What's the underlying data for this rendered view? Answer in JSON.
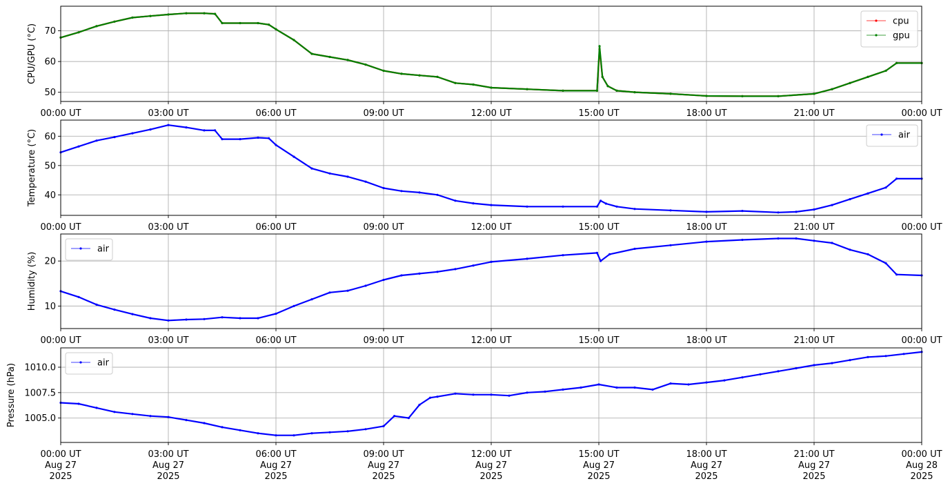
{
  "x_ticks": {
    "time": [
      "00:00 UT",
      "03:00 UT",
      "06:00 UT",
      "09:00 UT",
      "12:00 UT",
      "15:00 UT",
      "18:00 UT",
      "21:00 UT",
      "00:00 UT"
    ],
    "date_line1": [
      "Aug 27",
      "Aug 27",
      "Aug 27",
      "Aug 27",
      "Aug 27",
      "Aug 27",
      "Aug 27",
      "Aug 27",
      "Aug 28"
    ],
    "date_line2": [
      "2025",
      "2025",
      "2025",
      "2025",
      "2025",
      "2025",
      "2025",
      "2025",
      "2025"
    ]
  },
  "colors": {
    "cpu": "#ff0000",
    "gpu": "#008000",
    "air": "#0000ff",
    "grid": "#b0b0b0"
  },
  "chart_data": [
    {
      "type": "line",
      "ylabel": "CPU/GPU (°C)",
      "xlim": [
        0,
        24
      ],
      "ylim": [
        47,
        78
      ],
      "yticks": [
        50,
        60,
        70
      ],
      "ytick_labels": [
        "50",
        "60",
        "70"
      ],
      "grid": true,
      "legend": "top-right",
      "series": [
        {
          "name": "cpu",
          "color": "#ff0000",
          "points": [
            [
              0,
              67.8
            ],
            [
              0.5,
              69.5
            ],
            [
              1,
              71.5
            ],
            [
              1.5,
              73
            ],
            [
              2,
              74.3
            ],
            [
              2.5,
              74.8
            ],
            [
              3,
              75.3
            ],
            [
              3.5,
              75.7
            ],
            [
              4,
              75.7
            ],
            [
              4.3,
              75.5
            ],
            [
              4.5,
              72.5
            ],
            [
              5,
              72.5
            ],
            [
              5.5,
              72.5
            ],
            [
              5.8,
              72
            ],
            [
              6,
              70.5
            ],
            [
              6.5,
              67
            ],
            [
              7,
              62.5
            ],
            [
              7.5,
              61.5
            ],
            [
              8,
              60.5
            ],
            [
              8.5,
              59
            ],
            [
              9,
              57
            ],
            [
              9.5,
              56
            ],
            [
              10,
              55.5
            ],
            [
              10.5,
              55
            ],
            [
              11,
              53
            ],
            [
              11.5,
              52.5
            ],
            [
              12,
              51.5
            ],
            [
              13,
              51
            ],
            [
              14,
              50.5
            ],
            [
              14.95,
              50.5
            ],
            [
              15.02,
              64
            ],
            [
              15.1,
              55
            ],
            [
              15.25,
              52
            ],
            [
              15.5,
              50.5
            ],
            [
              16,
              50
            ],
            [
              17,
              49.5
            ],
            [
              18,
              48.8
            ],
            [
              19,
              48.7
            ],
            [
              20,
              48.7
            ],
            [
              21,
              49.5
            ],
            [
              21.5,
              51
            ],
            [
              22,
              53
            ],
            [
              22.5,
              55
            ],
            [
              23,
              57
            ],
            [
              23.3,
              59.5
            ],
            [
              24,
              59.5
            ]
          ]
        },
        {
          "name": "gpu",
          "color": "#008000",
          "points": [
            [
              0,
              67.8
            ],
            [
              0.5,
              69.5
            ],
            [
              1,
              71.5
            ],
            [
              1.5,
              73
            ],
            [
              2,
              74.3
            ],
            [
              2.5,
              74.8
            ],
            [
              3,
              75.3
            ],
            [
              3.5,
              75.7
            ],
            [
              4,
              75.7
            ],
            [
              4.3,
              75.5
            ],
            [
              4.5,
              72.5
            ],
            [
              5,
              72.5
            ],
            [
              5.5,
              72.5
            ],
            [
              5.8,
              72
            ],
            [
              6,
              70.5
            ],
            [
              6.5,
              67
            ],
            [
              7,
              62.5
            ],
            [
              7.5,
              61.5
            ],
            [
              8,
              60.5
            ],
            [
              8.5,
              59
            ],
            [
              9,
              57
            ],
            [
              9.5,
              56
            ],
            [
              10,
              55.5
            ],
            [
              10.5,
              55
            ],
            [
              11,
              53
            ],
            [
              11.5,
              52.5
            ],
            [
              12,
              51.5
            ],
            [
              13,
              51
            ],
            [
              14,
              50.5
            ],
            [
              14.95,
              50.5
            ],
            [
              15.02,
              65
            ],
            [
              15.1,
              55
            ],
            [
              15.25,
              52
            ],
            [
              15.5,
              50.5
            ],
            [
              16,
              50
            ],
            [
              17,
              49.5
            ],
            [
              18,
              48.8
            ],
            [
              19,
              48.7
            ],
            [
              20,
              48.7
            ],
            [
              21,
              49.5
            ],
            [
              21.5,
              51
            ],
            [
              22,
              53
            ],
            [
              22.5,
              55
            ],
            [
              23,
              57
            ],
            [
              23.3,
              59.5
            ],
            [
              24,
              59.5
            ]
          ]
        }
      ]
    },
    {
      "type": "line",
      "ylabel": "Temperature (°C)",
      "xlim": [
        0,
        24
      ],
      "ylim": [
        33,
        65.5
      ],
      "yticks": [
        40,
        50,
        60
      ],
      "ytick_labels": [
        "40",
        "50",
        "60"
      ],
      "grid": true,
      "legend": "top-right",
      "series": [
        {
          "name": "air",
          "color": "#0000ff",
          "points": [
            [
              0,
              54.5
            ],
            [
              0.5,
              56.5
            ],
            [
              1,
              58.5
            ],
            [
              1.5,
              59.7
            ],
            [
              2,
              61
            ],
            [
              2.5,
              62.3
            ],
            [
              3,
              63.8
            ],
            [
              3.5,
              63
            ],
            [
              4,
              62
            ],
            [
              4.3,
              62
            ],
            [
              4.5,
              59
            ],
            [
              5,
              59
            ],
            [
              5.5,
              59.5
            ],
            [
              5.8,
              59.3
            ],
            [
              6,
              57
            ],
            [
              6.5,
              53
            ],
            [
              7,
              49
            ],
            [
              7.5,
              47.3
            ],
            [
              8,
              46.2
            ],
            [
              8.5,
              44.5
            ],
            [
              9,
              42.3
            ],
            [
              9.5,
              41.3
            ],
            [
              10,
              40.8
            ],
            [
              10.5,
              40
            ],
            [
              11,
              38
            ],
            [
              11.5,
              37.1
            ],
            [
              12,
              36.5
            ],
            [
              13,
              36
            ],
            [
              14,
              36
            ],
            [
              14.95,
              36
            ],
            [
              15.05,
              38
            ],
            [
              15.2,
              37
            ],
            [
              15.5,
              36
            ],
            [
              16,
              35.2
            ],
            [
              17,
              34.7
            ],
            [
              18,
              34.2
            ],
            [
              19,
              34.5
            ],
            [
              20,
              34
            ],
            [
              20.5,
              34.2
            ],
            [
              21,
              35
            ],
            [
              21.5,
              36.5
            ],
            [
              22,
              38.5
            ],
            [
              22.5,
              40.5
            ],
            [
              23,
              42.5
            ],
            [
              23.3,
              45.5
            ],
            [
              24,
              45.5
            ]
          ]
        }
      ]
    },
    {
      "type": "line",
      "ylabel": "Humidity (%)",
      "xlim": [
        0,
        24
      ],
      "ylim": [
        5,
        26
      ],
      "yticks": [
        10,
        20
      ],
      "ytick_labels": [
        "10",
        "20"
      ],
      "grid": true,
      "legend": "top-left",
      "series": [
        {
          "name": "air",
          "color": "#0000ff",
          "points": [
            [
              0,
              13.3
            ],
            [
              0.5,
              12
            ],
            [
              1,
              10.3
            ],
            [
              1.5,
              9.2
            ],
            [
              2,
              8.2
            ],
            [
              2.5,
              7.3
            ],
            [
              3,
              6.8
            ],
            [
              3.5,
              7
            ],
            [
              4,
              7.1
            ],
            [
              4.5,
              7.5
            ],
            [
              5,
              7.3
            ],
            [
              5.5,
              7.3
            ],
            [
              6,
              8.3
            ],
            [
              6.5,
              10
            ],
            [
              7,
              11.5
            ],
            [
              7.5,
              13
            ],
            [
              8,
              13.4
            ],
            [
              8.5,
              14.5
            ],
            [
              9,
              15.8
            ],
            [
              9.5,
              16.8
            ],
            [
              10,
              17.2
            ],
            [
              10.5,
              17.6
            ],
            [
              11,
              18.2
            ],
            [
              11.5,
              19
            ],
            [
              12,
              19.8
            ],
            [
              13,
              20.5
            ],
            [
              14,
              21.3
            ],
            [
              14.95,
              21.8
            ],
            [
              15.05,
              20
            ],
            [
              15.3,
              21.5
            ],
            [
              16,
              22.7
            ],
            [
              17,
              23.5
            ],
            [
              18,
              24.3
            ],
            [
              19,
              24.7
            ],
            [
              20,
              25
            ],
            [
              20.5,
              25
            ],
            [
              21,
              24.5
            ],
            [
              21.5,
              24
            ],
            [
              22,
              22.5
            ],
            [
              22.5,
              21.5
            ],
            [
              23,
              19.5
            ],
            [
              23.3,
              17
            ],
            [
              24,
              16.8
            ]
          ]
        }
      ]
    },
    {
      "type": "line",
      "ylabel": "Pressure (hPa)",
      "xlim": [
        0,
        24
      ],
      "ylim": [
        1002.6,
        1011.9
      ],
      "yticks": [
        1005.0,
        1007.5,
        1010.0
      ],
      "ytick_labels": [
        "1005.0",
        "1007.5",
        "1010.0"
      ],
      "grid": true,
      "legend": "top-left",
      "series": [
        {
          "name": "air",
          "color": "#0000ff",
          "points": [
            [
              0,
              1006.5
            ],
            [
              0.5,
              1006.4
            ],
            [
              1,
              1006
            ],
            [
              1.5,
              1005.6
            ],
            [
              2,
              1005.4
            ],
            [
              2.5,
              1005.2
            ],
            [
              3,
              1005.1
            ],
            [
              3.5,
              1004.8
            ],
            [
              4,
              1004.5
            ],
            [
              4.5,
              1004.1
            ],
            [
              5,
              1003.8
            ],
            [
              5.5,
              1003.5
            ],
            [
              6,
              1003.3
            ],
            [
              6.5,
              1003.3
            ],
            [
              7,
              1003.5
            ],
            [
              7.5,
              1003.6
            ],
            [
              8,
              1003.7
            ],
            [
              8.5,
              1003.9
            ],
            [
              9,
              1004.2
            ],
            [
              9.3,
              1005.2
            ],
            [
              9.7,
              1005
            ],
            [
              10,
              1006.3
            ],
            [
              10.3,
              1007
            ],
            [
              10.5,
              1007.1
            ],
            [
              11,
              1007.4
            ],
            [
              11.5,
              1007.3
            ],
            [
              12,
              1007.3
            ],
            [
              12.5,
              1007.2
            ],
            [
              13,
              1007.5
            ],
            [
              13.5,
              1007.6
            ],
            [
              14,
              1007.8
            ],
            [
              14.5,
              1008
            ],
            [
              15,
              1008.3
            ],
            [
              15.5,
              1008
            ],
            [
              16,
              1008
            ],
            [
              16.5,
              1007.8
            ],
            [
              17,
              1008.4
            ],
            [
              17.5,
              1008.3
            ],
            [
              18,
              1008.5
            ],
            [
              18.5,
              1008.7
            ],
            [
              19,
              1009
            ],
            [
              19.5,
              1009.3
            ],
            [
              20,
              1009.6
            ],
            [
              20.5,
              1009.9
            ],
            [
              21,
              1010.2
            ],
            [
              21.5,
              1010.4
            ],
            [
              22,
              1010.7
            ],
            [
              22.5,
              1011
            ],
            [
              23,
              1011.1
            ],
            [
              23.5,
              1011.3
            ],
            [
              24,
              1011.5
            ]
          ]
        }
      ]
    }
  ]
}
